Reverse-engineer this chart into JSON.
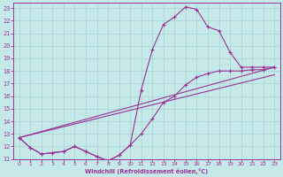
{
  "xlabel": "Windchill (Refroidissement éolien,°C)",
  "xlim": [
    -0.5,
    23.5
  ],
  "ylim": [
    11,
    23.4
  ],
  "xticks": [
    0,
    1,
    2,
    3,
    4,
    5,
    6,
    7,
    8,
    9,
    10,
    11,
    12,
    13,
    14,
    15,
    16,
    17,
    18,
    19,
    20,
    21,
    22,
    23
  ],
  "yticks": [
    11,
    12,
    13,
    14,
    15,
    16,
    17,
    18,
    19,
    20,
    21,
    22,
    23
  ],
  "bg_color": "#c5e8e8",
  "grid_color": "#a8d4d4",
  "line_color": "#993399",
  "spine_color": "#993399",
  "line1_x": [
    0,
    1,
    2,
    3,
    4,
    5,
    6,
    7,
    8,
    9,
    10,
    11,
    12,
    13,
    14,
    15,
    16,
    17,
    18,
    19,
    20,
    21,
    22,
    23
  ],
  "line1_y": [
    12.7,
    11.9,
    11.4,
    11.5,
    11.6,
    12.0,
    11.6,
    11.2,
    10.85,
    11.3,
    12.1,
    16.5,
    19.7,
    21.7,
    22.3,
    23.1,
    22.9,
    21.5,
    21.2,
    19.5,
    18.3,
    18.3,
    18.3,
    18.3
  ],
  "line2_x": [
    0,
    1,
    2,
    3,
    4,
    5,
    6,
    7,
    8,
    9,
    10,
    11,
    12,
    13,
    14,
    15,
    16,
    17,
    18,
    19,
    20,
    21,
    22,
    23
  ],
  "line2_y": [
    12.7,
    11.9,
    11.4,
    11.5,
    11.6,
    12.0,
    11.6,
    11.2,
    10.85,
    11.3,
    12.1,
    13.0,
    14.2,
    15.5,
    16.0,
    16.9,
    17.5,
    17.8,
    18.0,
    18.0,
    18.0,
    18.1,
    18.1,
    18.3
  ],
  "line3_x": [
    0,
    23
  ],
  "line3_y": [
    12.7,
    18.3
  ],
  "line4_x": [
    0,
    23
  ],
  "line4_y": [
    12.7,
    17.7
  ]
}
